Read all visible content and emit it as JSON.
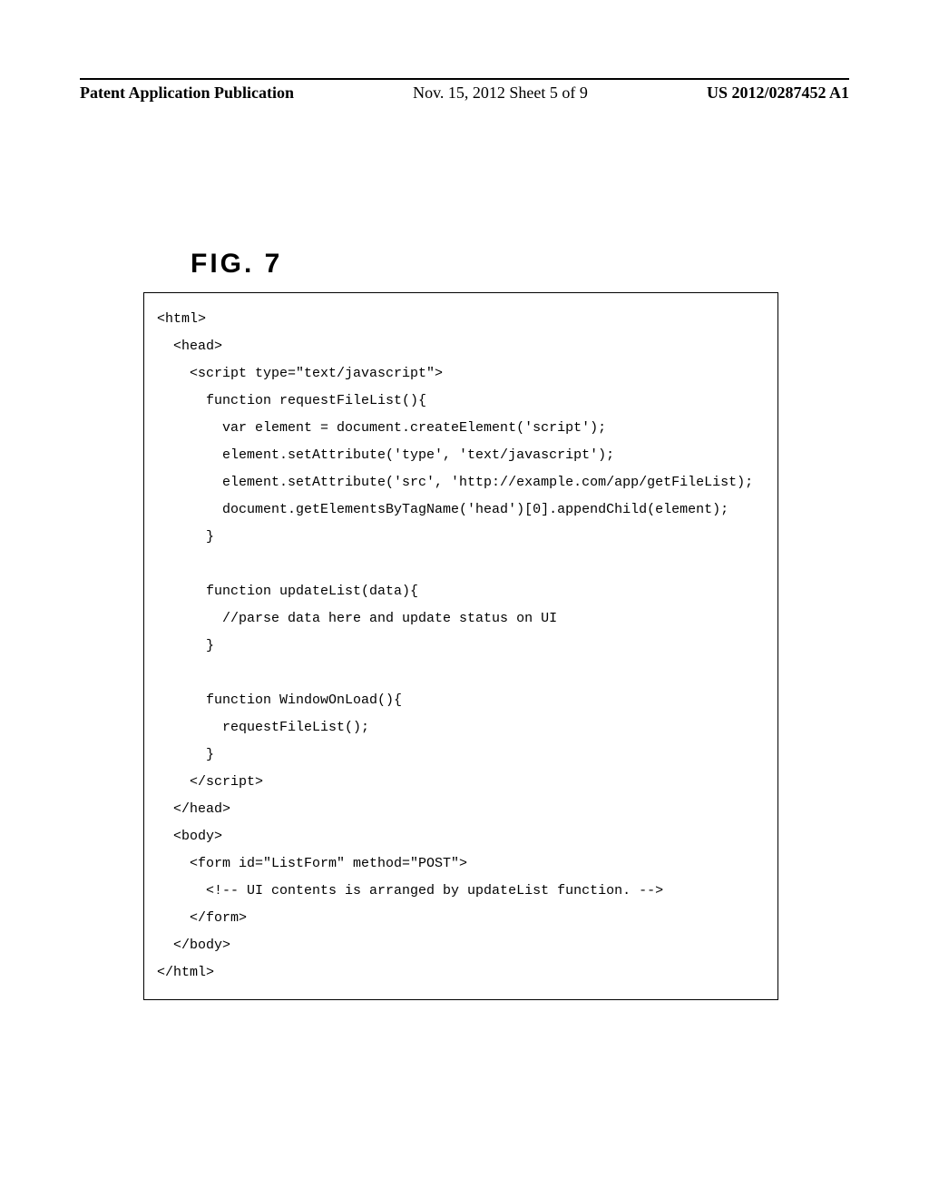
{
  "header": {
    "left": "Patent Application Publication",
    "center": "Nov. 15, 2012  Sheet 5 of 9",
    "right": "US 2012/0287452 A1"
  },
  "figure_label": "FIG. 7",
  "code_lines": [
    "<html>",
    "  <head>",
    "    <script type=\"text/javascript\">",
    "      function requestFileList(){",
    "        var element = document.createElement('script');",
    "        element.setAttribute('type', 'text/javascript');",
    "        element.setAttribute('src', 'http://example.com/app/getFileList);",
    "        document.getElementsByTagName('head')[0].appendChild(element);",
    "      }",
    "",
    "      function updateList(data){",
    "        //parse data here and update status on UI",
    "      }",
    "",
    "      function WindowOnLoad(){",
    "        requestFileList();",
    "      }",
    "    </script>",
    "  </head>",
    "  <body>",
    "    <form id=\"ListForm\" method=\"POST\">",
    "      <!-- UI contents is arranged by updateList function. -->",
    "    </form>",
    "  </body>",
    "</html>"
  ]
}
